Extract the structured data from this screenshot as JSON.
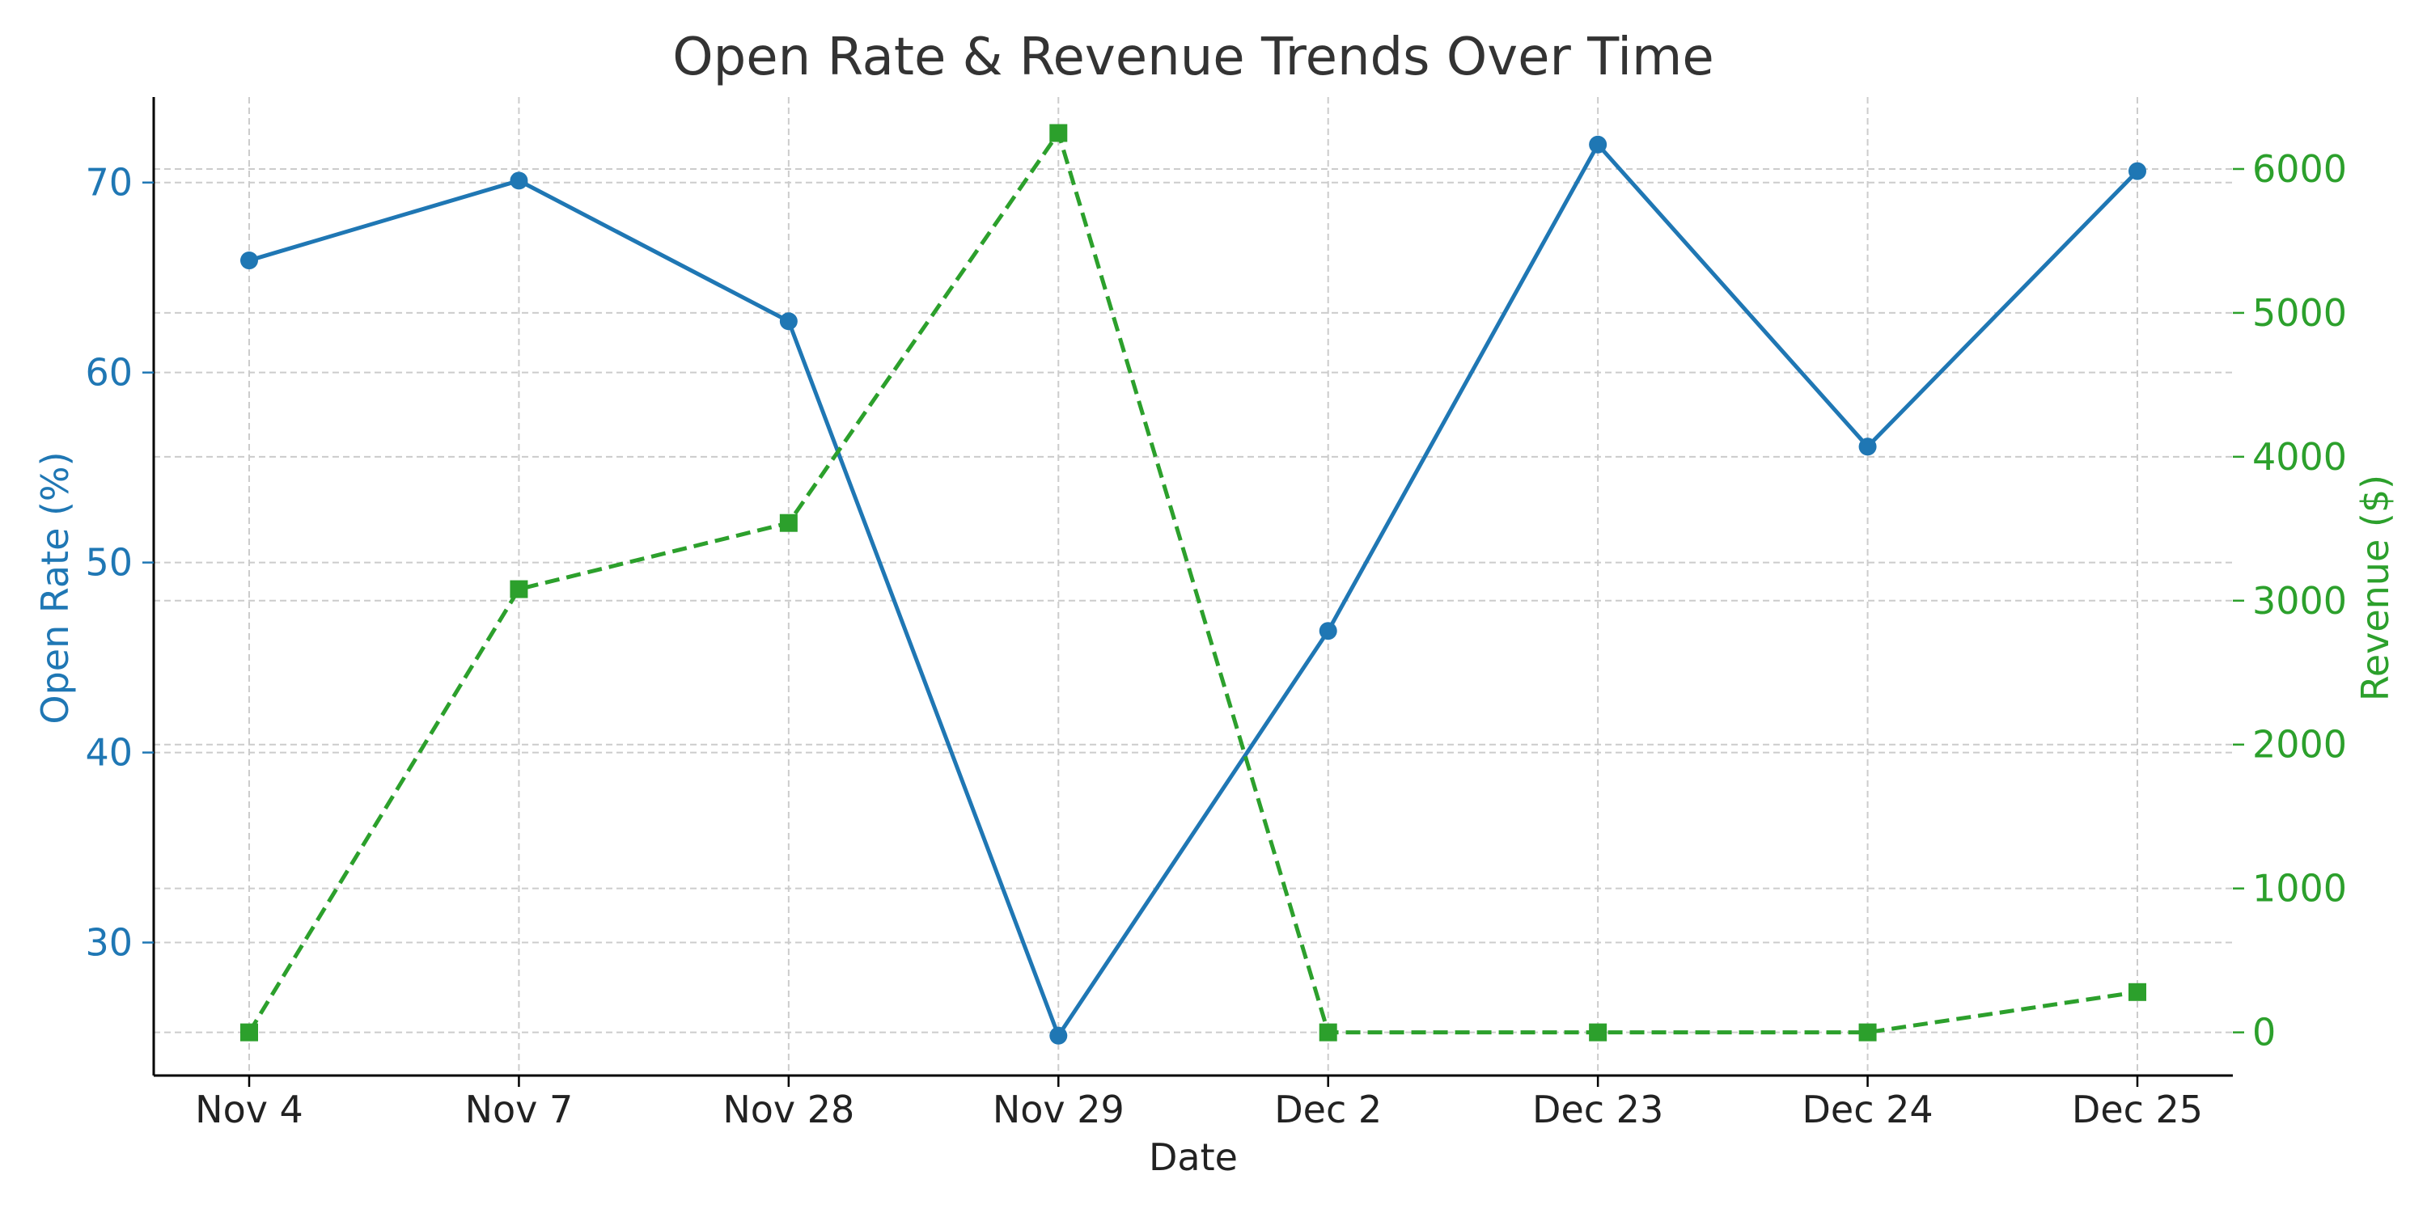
{
  "chart_data": {
    "type": "line",
    "title": "Open Rate & Revenue Trends Over Time",
    "xlabel": "Date",
    "categories": [
      "Nov 4",
      "Nov 7",
      "Nov 28",
      "Nov 29",
      "Dec 2",
      "Dec 23",
      "Dec 24",
      "Dec 25"
    ],
    "y_left": {
      "label": "Open Rate (%)",
      "range": [
        23,
        74.5
      ],
      "ticks": [
        30,
        40,
        50,
        60,
        70
      ]
    },
    "y_right": {
      "label": "Revenue ($)",
      "range": [
        -300,
        6500
      ],
      "ticks": [
        0,
        1000,
        2000,
        3000,
        4000,
        5000,
        6000
      ]
    },
    "series": [
      {
        "axis": "left",
        "marker": "circle",
        "line_style": "solid",
        "color": "#1f77b4",
        "values": [
          65.9,
          70.1,
          62.7,
          25.1,
          46.4,
          72.0,
          56.1,
          70.6
        ]
      },
      {
        "axis": "right",
        "marker": "square",
        "line_style": "dashed",
        "color": "#2ca02c",
        "values": [
          0,
          3080,
          3540,
          6250,
          0,
          0,
          0,
          280
        ]
      }
    ],
    "grid": true
  }
}
